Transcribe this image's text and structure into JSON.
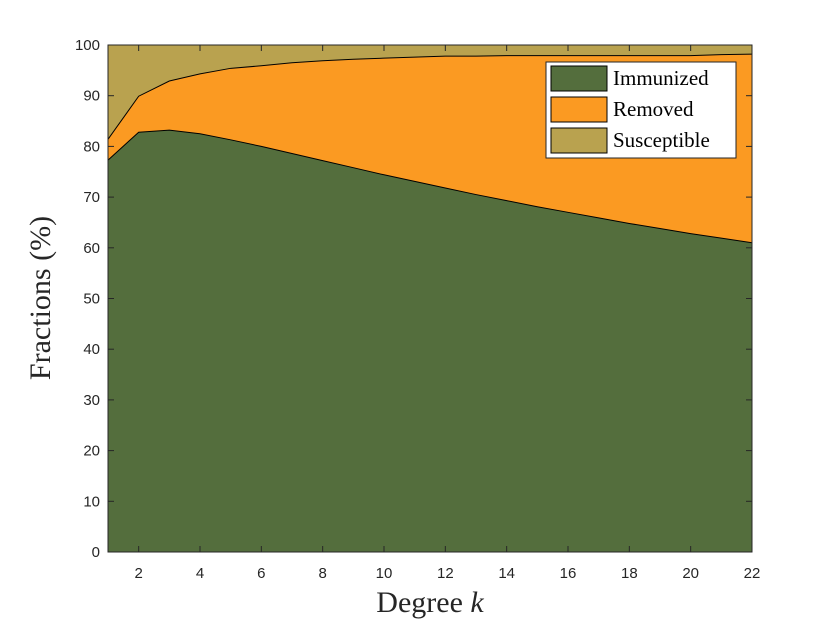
{
  "chart_data": {
    "type": "area",
    "stacked": true,
    "xlabel": "Degree ",
    "xlabel_var": "k",
    "ylabel": "Fractions (%)",
    "xlim": [
      1,
      22
    ],
    "ylim": [
      0,
      100
    ],
    "xticks": [
      2,
      4,
      6,
      8,
      10,
      12,
      14,
      16,
      18,
      20,
      22
    ],
    "yticks": [
      0,
      10,
      20,
      30,
      40,
      50,
      60,
      70,
      80,
      90,
      100
    ],
    "grid": false,
    "legend_position": "top-right",
    "x": [
      1,
      2,
      3,
      4,
      5,
      6,
      7,
      8,
      9,
      10,
      11,
      12,
      13,
      14,
      15,
      16,
      17,
      18,
      19,
      20,
      21,
      22
    ],
    "series": [
      {
        "name": "Immunized",
        "color": "#546e3d",
        "values": [
          77.3,
          82.8,
          83.2,
          82.5,
          81.3,
          80.0,
          78.6,
          77.2,
          75.8,
          74.4,
          73.1,
          71.8,
          70.5,
          69.3,
          68.1,
          67.0,
          65.9,
          64.8,
          63.8,
          62.8,
          61.9,
          61.0
        ]
      },
      {
        "name": "Removed",
        "color": "#fb9a22",
        "values": [
          4.1,
          7.1,
          9.7,
          11.8,
          14.1,
          15.9,
          17.9,
          19.7,
          21.4,
          23.0,
          24.5,
          26.0,
          27.3,
          28.6,
          29.8,
          30.9,
          32.0,
          33.1,
          34.1,
          35.1,
          36.2,
          37.2
        ]
      },
      {
        "name": "Susceptible",
        "color": "#b9a24f",
        "values": [
          18.6,
          10.1,
          7.1,
          5.7,
          4.6,
          4.1,
          3.5,
          3.1,
          2.8,
          2.6,
          2.4,
          2.2,
          2.2,
          2.1,
          2.1,
          2.1,
          2.1,
          2.1,
          2.1,
          2.1,
          1.9,
          1.8
        ]
      }
    ]
  }
}
